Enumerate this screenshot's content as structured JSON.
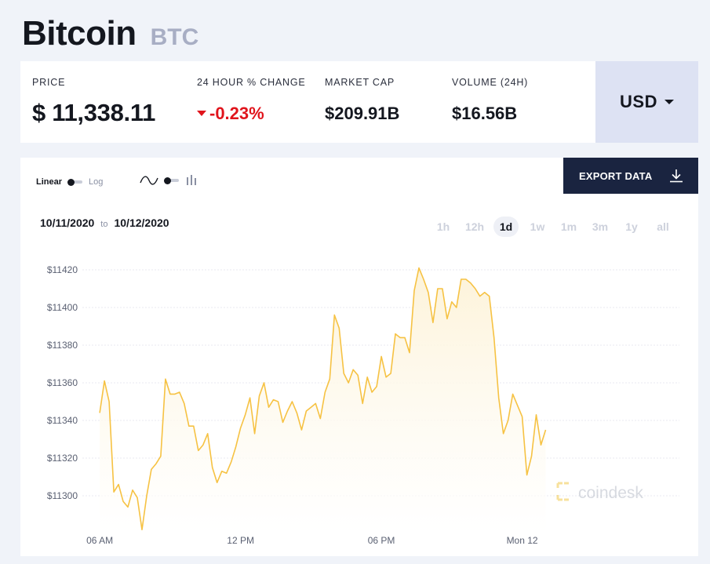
{
  "header": {
    "name": "Bitcoin",
    "symbol": "BTC"
  },
  "stats": {
    "price_label": "PRICE",
    "price_value": "$ 11,338.11",
    "change_label": "24 HOUR % CHANGE",
    "change_value": "-0.23%",
    "mcap_label": "MARKET CAP",
    "mcap_value": "$209.91B",
    "volume_label": "VOLUME (24H)",
    "volume_value": "$16.56B"
  },
  "currency": {
    "selected": "USD"
  },
  "toolbar": {
    "linear_label": "Linear",
    "log_label": "Log",
    "export_label": "EXPORT DATA",
    "date_from": "10/11/2020",
    "date_to_word": "to",
    "date_to": "10/12/2020",
    "ranges": [
      "1h",
      "12h",
      "1d",
      "1w",
      "1m",
      "3m",
      "1y",
      "all"
    ],
    "active_range": "1d"
  },
  "watermark": "coindesk",
  "colors": {
    "line": "#f6c243",
    "fill": "#fdf3d9",
    "negative": "#e0141c",
    "accent": "#1a2440"
  },
  "chart_data": {
    "type": "area",
    "ylim": [
      11280,
      11430
    ],
    "yticks": [
      11300,
      11320,
      11340,
      11360,
      11380,
      11400,
      11420
    ],
    "ytick_labels": [
      "$11300",
      "$11320",
      "$11340",
      "$11360",
      "$11380",
      "$11400",
      "$11420"
    ],
    "xticks": [
      0,
      30,
      60,
      90
    ],
    "xtick_labels": [
      "06 AM",
      "12 PM",
      "06 PM",
      "Mon 12"
    ],
    "x_range": [
      -3.7,
      123.5
    ],
    "values": [
      11344,
      11361,
      11350,
      11302,
      11306,
      11297,
      11294,
      11303,
      11299,
      11282,
      11300,
      11314,
      11317,
      11321,
      11362,
      11354,
      11354,
      11355,
      11349,
      11337,
      11337,
      11324,
      11327,
      11333,
      11315,
      11307,
      11313,
      11312,
      11318,
      11326,
      11336,
      11343,
      11352,
      11333,
      11353,
      11360,
      11347,
      11351,
      11350,
      11339,
      11345,
      11350,
      11344,
      11335,
      11345,
      11347,
      11349,
      11341,
      11355,
      11362,
      11396,
      11389,
      11365,
      11360,
      11367,
      11364,
      11349,
      11363,
      11355,
      11358,
      11374,
      11363,
      11365,
      11386,
      11384,
      11384,
      11376,
      11409,
      11421,
      11415,
      11408,
      11392,
      11410,
      11410,
      11394,
      11403,
      11400,
      11415,
      11415,
      11413,
      11410,
      11406,
      11408,
      11406,
      11384,
      11352,
      11333,
      11340,
      11354,
      11348,
      11342,
      11311,
      11321,
      11343,
      11327,
      11335
    ]
  }
}
